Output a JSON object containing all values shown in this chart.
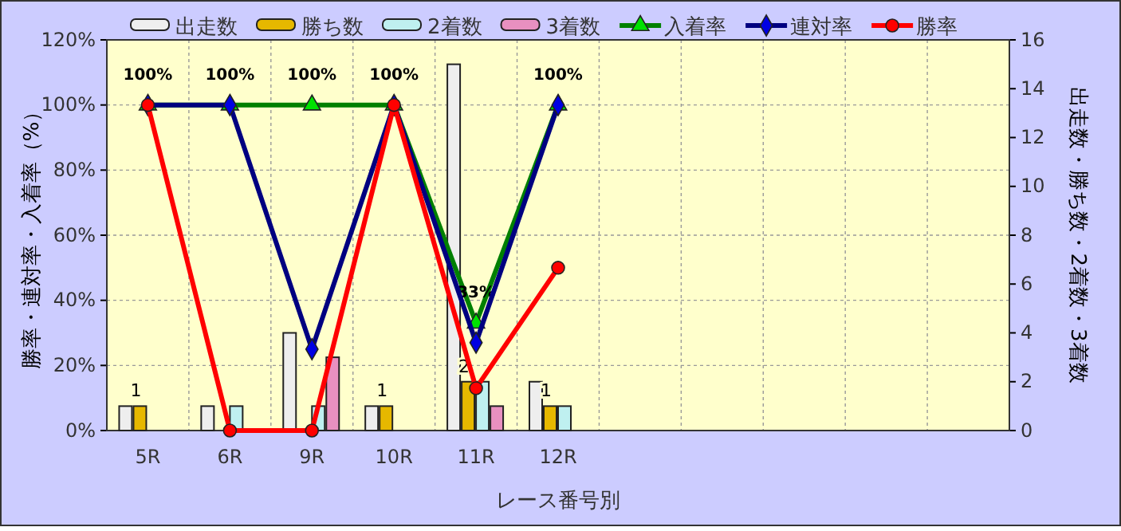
{
  "chart_data": {
    "type": "bar",
    "xlabel": "レース番号別",
    "ylabel": "勝率・連対率・入着率（%）",
    "y2label": "出走数・勝ち数・2着数・3着数",
    "categories": [
      "5R",
      "6R",
      "9R",
      "10R",
      "11R",
      "12R",
      null,
      null,
      null,
      null,
      null
    ],
    "ylim": [
      0,
      120
    ],
    "yticks": [
      {
        "value": 0,
        "label": "0%"
      },
      {
        "value": 20,
        "label": "20%"
      },
      {
        "value": 40,
        "label": "40%"
      },
      {
        "value": 60,
        "label": "60%"
      },
      {
        "value": 80,
        "label": "80%"
      },
      {
        "value": 100,
        "label": "100%"
      },
      {
        "value": 120,
        "label": "120%"
      }
    ],
    "y2lim": [
      0,
      16
    ],
    "y2ticks": [
      0,
      2,
      4,
      6,
      8,
      10,
      12,
      14,
      16
    ],
    "grid": true,
    "legend": "top",
    "series": [
      {
        "name": "出走数",
        "axis": "y2",
        "color": "#eeeeee",
        "values": [
          1,
          1,
          4,
          1,
          15,
          2,
          null,
          null,
          null,
          null,
          null
        ]
      },
      {
        "name": "勝ち数",
        "axis": "y2",
        "color": "#e6b800",
        "values": [
          1,
          0,
          0,
          1,
          2,
          1,
          null,
          null,
          null,
          null,
          null
        ],
        "value_labels": [
          "1",
          null,
          null,
          "1",
          "2",
          "1",
          null,
          null,
          null,
          null,
          null
        ]
      },
      {
        "name": "2着数",
        "axis": "y2",
        "color": "#bff0f0",
        "values": [
          0,
          1,
          1,
          0,
          2,
          1,
          null,
          null,
          null,
          null,
          null
        ]
      },
      {
        "name": "3着数",
        "axis": "y2",
        "color": "#e890c0",
        "values": [
          0,
          0,
          3,
          0,
          1,
          0,
          null,
          null,
          null,
          null,
          null
        ]
      },
      {
        "name": "入着率",
        "type": "line",
        "color": "#008000",
        "marker": "triangle",
        "values": [
          100,
          100,
          100,
          100,
          33,
          100,
          null,
          null,
          null,
          null,
          null
        ],
        "value_labels": [
          "100%",
          "100%",
          "100%",
          "100%",
          "33%",
          "100%",
          null,
          null,
          null,
          null,
          null
        ]
      },
      {
        "name": "連対率",
        "type": "line",
        "color": "#000080",
        "marker": "diamond",
        "values": [
          100,
          100,
          25,
          100,
          27,
          100,
          null,
          null,
          null,
          null,
          null
        ]
      },
      {
        "name": "勝率",
        "type": "line",
        "color": "#ff0000",
        "marker": "circle",
        "values": [
          100,
          0,
          0,
          100,
          13,
          50,
          null,
          null,
          null,
          null,
          null
        ]
      }
    ]
  }
}
